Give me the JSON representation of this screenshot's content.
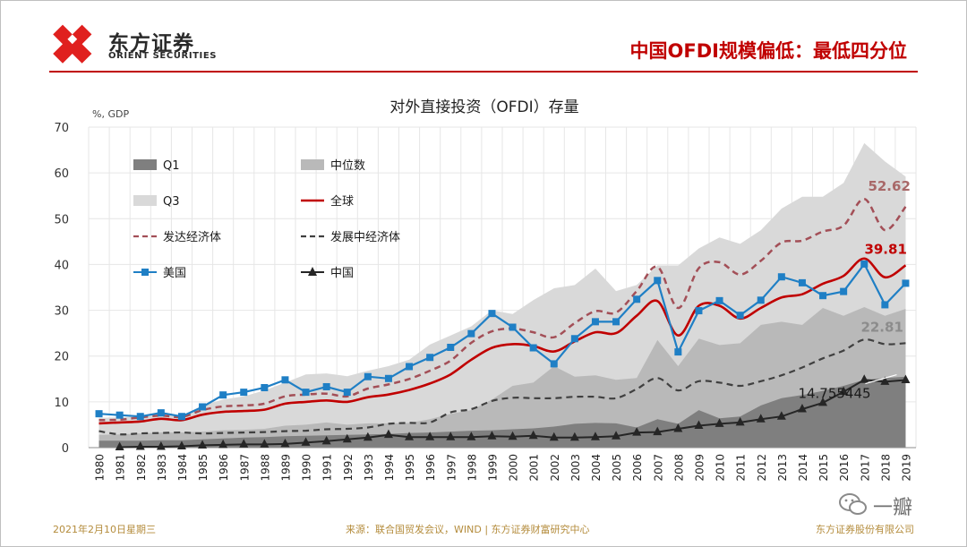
{
  "header": {
    "logo_cn": "东方证券",
    "logo_en": "ORIENT SECURITIES",
    "headline": "中国OFDI规模偏低：最低四分位"
  },
  "footer": {
    "date": "2021年2月10日星期三",
    "source": "来源：联合国贸发会议，WIND | 东方证券财富研究中心",
    "company": "东方证券股份有限公司"
  },
  "watermark": {
    "text": "一瓣"
  },
  "icons": [
    "wechat-icon"
  ],
  "colors": {
    "brand_red": "#c00000",
    "global": "#c00000",
    "developed": "#a34f57",
    "developing": "#404040",
    "usa": "#1f7fc5",
    "china": "#262626",
    "q1": "#7f7f7f",
    "median": "#b9b9b9",
    "q3": "#d9d9d9"
  },
  "chart_data": {
    "type": "line",
    "title": "对外直接投资（OFDI）存量",
    "ylabel": "%, GDP",
    "xlabel": "",
    "ylim": [
      0,
      70
    ],
    "yticks": [
      0,
      10,
      20,
      30,
      40,
      50,
      60,
      70
    ],
    "grid": true,
    "x": [
      1980,
      1981,
      1982,
      1983,
      1984,
      1985,
      1986,
      1987,
      1988,
      1989,
      1990,
      1991,
      1992,
      1993,
      1994,
      1995,
      1996,
      1997,
      1998,
      1999,
      2000,
      2001,
      2002,
      2003,
      2004,
      2005,
      2006,
      2007,
      2008,
      2009,
      2010,
      2011,
      2012,
      2013,
      2014,
      2015,
      2016,
      2017,
      2018,
      2019
    ],
    "series": [
      {
        "name": "Q1",
        "kind": "area",
        "values": [
          1.5,
          1.5,
          1.5,
          1.6,
          1.6,
          1.8,
          2,
          2.2,
          2.3,
          2.5,
          2.6,
          2.7,
          2.8,
          2.9,
          3,
          3.2,
          3.3,
          3.5,
          3.7,
          3.8,
          4,
          4.2,
          4.6,
          5.2,
          5.4,
          5.3,
          4.4,
          6.2,
          5.2,
          8.2,
          6.4,
          6.8,
          9.2,
          10.8,
          11.5,
          12.4,
          13.5,
          14.8,
          15.2,
          15.5
        ]
      },
      {
        "name": "中位数",
        "kind": "area",
        "values": [
          2.8,
          2.9,
          3.1,
          3.3,
          3.3,
          3.5,
          3.8,
          3.9,
          4.1,
          4.8,
          5,
          5.5,
          5,
          5.3,
          5.3,
          5.4,
          6.2,
          7.4,
          8.2,
          10.5,
          13.5,
          14.2,
          17.8,
          15.5,
          15.8,
          14.8,
          15.2,
          23.5,
          17.8,
          23.8,
          22.4,
          22.8,
          26.8,
          27.5,
          26.8,
          30.5,
          28.8,
          30.7,
          28.8,
          30.3
        ]
      },
      {
        "name": "Q3",
        "kind": "area",
        "values": [
          6.5,
          6.6,
          6.9,
          7.3,
          6.8,
          9.2,
          10.5,
          11.2,
          12.5,
          14.2,
          16,
          16.2,
          15.6,
          16.8,
          17.8,
          19.2,
          22.5,
          24.5,
          26.5,
          30,
          29.2,
          32.2,
          34.8,
          35.5,
          39.1,
          34.2,
          35.5,
          39.8,
          39.8,
          43.5,
          45.9,
          44.5,
          47.5,
          52.2,
          54.8,
          54.8,
          57.8,
          66.5,
          62.5,
          59.2
        ]
      },
      {
        "name": "全球",
        "kind": "line",
        "values": [
          5.3,
          5.5,
          5.7,
          6.3,
          6,
          7.2,
          7.8,
          8,
          8.3,
          9.6,
          10,
          10.3,
          10,
          11,
          11.6,
          12.6,
          14,
          16,
          19.2,
          21.8,
          22.6,
          22.2,
          21,
          23.2,
          25.2,
          25,
          28.8,
          32,
          24.5,
          31,
          31,
          28.2,
          30.5,
          32.8,
          33.5,
          35.8,
          37.5,
          41.3,
          37.2,
          39.81
        ]
      },
      {
        "name": "发达经济体",
        "kind": "dashed",
        "values": [
          6,
          6.1,
          6.6,
          7,
          6.7,
          8.2,
          9,
          9.2,
          9.6,
          11.2,
          11.6,
          11.8,
          11.2,
          12.9,
          13.8,
          15,
          16.8,
          19,
          22.9,
          25.4,
          26,
          25.2,
          24.1,
          27.2,
          29.8,
          29.5,
          34.2,
          39.5,
          30.5,
          39.2,
          40.5,
          37.8,
          40.8,
          44.8,
          45.2,
          47.2,
          48.5,
          54.3,
          47.5,
          52.62
        ]
      },
      {
        "name": "发展中经济体",
        "kind": "dashed",
        "values": [
          3.6,
          2.9,
          3.1,
          3.2,
          3.3,
          3.1,
          3.2,
          3.3,
          3.4,
          3.6,
          3.7,
          4,
          4.1,
          4.4,
          5.2,
          5.4,
          5.5,
          7.7,
          8.4,
          10.2,
          10.9,
          10.8,
          10.8,
          11.1,
          11.1,
          10.8,
          12.8,
          15.2,
          12.5,
          14.5,
          14.2,
          13.5,
          14.5,
          15.8,
          17.5,
          19.5,
          21.2,
          23.6,
          22.6,
          22.81
        ]
      },
      {
        "name": "美国",
        "kind": "markers",
        "values": [
          7.4,
          7.1,
          6.8,
          7.6,
          6.8,
          8.9,
          11.5,
          12.1,
          13.1,
          14.8,
          12.1,
          13.3,
          12.1,
          15.5,
          15.1,
          17.7,
          19.7,
          21.9,
          24.9,
          29.3,
          26.3,
          21.8,
          18.3,
          23.8,
          27.5,
          27.5,
          32.4,
          36.5,
          20.9,
          29.9,
          32.1,
          28.9,
          32.2,
          37.3,
          36,
          33.2,
          34.1,
          40.1,
          31.2,
          35.9
        ]
      },
      {
        "name": "中国",
        "kind": "markers",
        "values": [
          null,
          0.1,
          0.2,
          0.2,
          0.3,
          0.5,
          0.6,
          0.7,
          0.7,
          0.8,
          1.1,
          1.4,
          1.8,
          2.2,
          2.8,
          2.3,
          2.3,
          2.3,
          2.3,
          2.5,
          2.4,
          2.6,
          2.2,
          2.2,
          2.3,
          2.5,
          3.3,
          3.4,
          4.1,
          4.8,
          5.2,
          5.5,
          6.2,
          6.8,
          8.4,
          9.8,
          12.2,
          14.8,
          14.4,
          14.755445
        ]
      }
    ],
    "annotations": [
      {
        "text": "52.62",
        "series": "发达经济体",
        "x": 2019,
        "y": 52.62
      },
      {
        "text": "39.81",
        "series": "全球",
        "x": 2019,
        "y": 39.81
      },
      {
        "text": "22.81",
        "series": "发展中经济体",
        "x": 2019,
        "y": 22.81
      },
      {
        "text": "14.755445",
        "series": "中国",
        "x": 2019,
        "y": 14.755445
      }
    ],
    "legend": {
      "placement": "top-left",
      "items": [
        "Q1",
        "中位数",
        "Q3",
        "全球",
        "发达经济体",
        "发展中经济体",
        "美国",
        "中国"
      ]
    }
  }
}
